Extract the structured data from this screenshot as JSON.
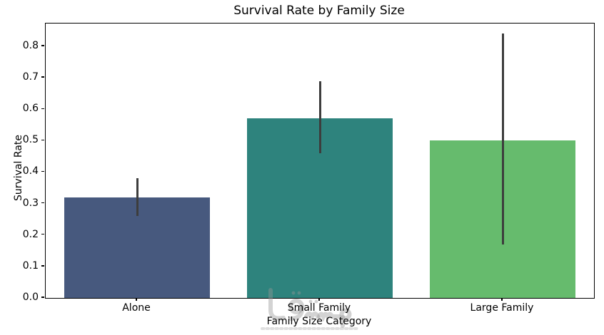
{
  "chart_data": {
    "type": "bar",
    "title": "Survival Rate by Family Size",
    "xlabel": "Family Size Category",
    "ylabel": "Survival Rate",
    "categories": [
      "Alone",
      "Small Family",
      "Large Family"
    ],
    "values": [
      0.32,
      0.57,
      0.5
    ],
    "error_bars": [
      [
        0.26,
        0.38
      ],
      [
        0.46,
        0.69
      ],
      [
        0.17,
        0.84
      ]
    ],
    "bar_colors": [
      "#47597e",
      "#2e837d",
      "#66bb6d"
    ],
    "errorbar_color": "#3d3d3d",
    "yticks": [
      0.0,
      0.1,
      0.2,
      0.3,
      0.4,
      0.5,
      0.6,
      0.7,
      0.8
    ],
    "ytick_decimals": 1,
    "ylim": [
      0,
      0.8725
    ],
    "grid": false,
    "legend_position": "none"
  },
  "watermark": {
    "text": "مستقل"
  }
}
